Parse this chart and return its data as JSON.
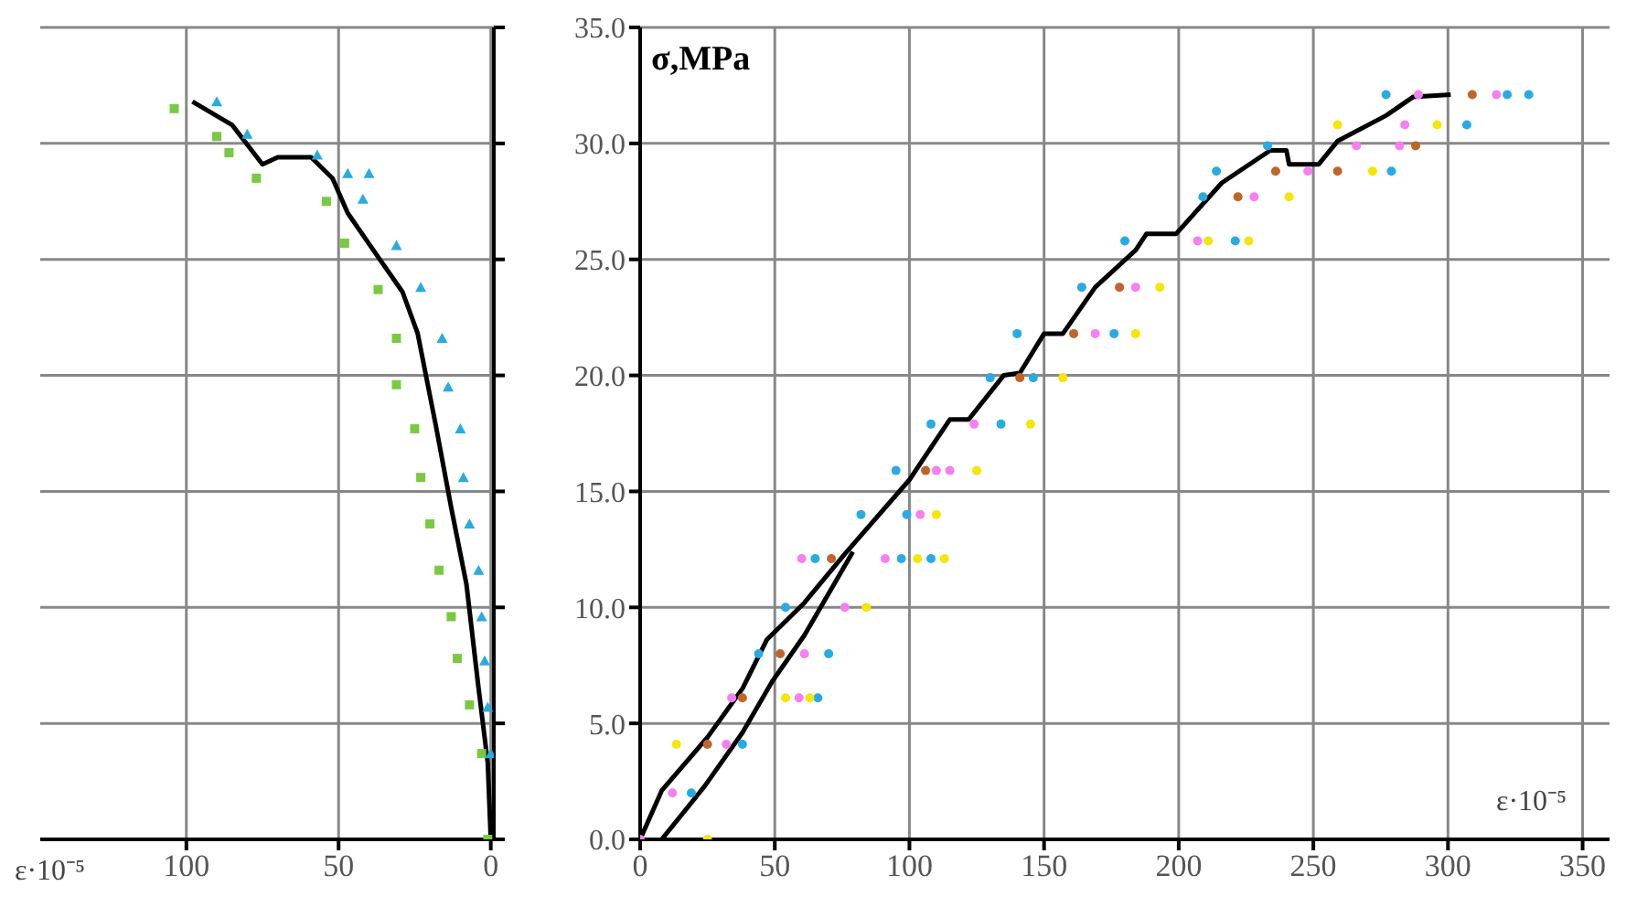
{
  "chart_data": [
    {
      "type": "scatter",
      "xlabel": "ε·10⁻⁵",
      "xlim": [
        148,
        -1
      ],
      "xticks": [
        100,
        50,
        0
      ],
      "ylim": [
        0,
        35
      ],
      "yticks": [
        0,
        5,
        10,
        15,
        20,
        25,
        30,
        35
      ],
      "tick_labels": "x",
      "grid": true,
      "series": [
        {
          "marker": "square",
          "color": "#7ac943",
          "x": [
            104,
            90,
            86,
            77,
            54,
            48,
            37,
            31,
            31,
            25,
            23,
            20,
            17,
            13,
            11,
            7,
            3,
            1
          ],
          "values": [
            31.5,
            30.3,
            29.6,
            28.5,
            27.5,
            25.7,
            23.7,
            21.6,
            19.6,
            17.7,
            15.6,
            13.6,
            11.6,
            9.6,
            7.8,
            5.8,
            3.7,
            0
          ]
        },
        {
          "marker": "triangle",
          "color": "#29abe2",
          "x": [
            90,
            80,
            57,
            47,
            40,
            42,
            31,
            23,
            16,
            14,
            10,
            9,
            7,
            4,
            3,
            2,
            1,
            0
          ],
          "values": [
            31.8,
            30.4,
            29.5,
            28.7,
            28.7,
            27.6,
            25.6,
            23.8,
            21.6,
            19.5,
            17.7,
            15.6,
            13.6,
            11.6,
            9.6,
            7.7,
            5.7,
            3.7
          ]
        },
        {
          "type": "line",
          "color": "#000000",
          "x": [
            98,
            85,
            75,
            70,
            59,
            52,
            47,
            37,
            29,
            24,
            18,
            13,
            8,
            4,
            1,
            0
          ],
          "values": [
            31.8,
            30.8,
            29.1,
            29.4,
            29.4,
            28.5,
            27.0,
            25.1,
            23.6,
            21.8,
            17.8,
            14.3,
            11.0,
            6.5,
            3.3,
            0
          ]
        }
      ]
    },
    {
      "type": "scatter",
      "ylabel": "σ,MPa",
      "xlabel": "ε·10⁻⁵",
      "xlim": [
        0,
        360
      ],
      "xticks": [
        0,
        50,
        100,
        150,
        200,
        250,
        300,
        350
      ],
      "ylim": [
        0,
        35
      ],
      "yticks": [
        {
          "value": 0,
          "label": "0.0"
        },
        {
          "value": 5,
          "label": "5.0"
        },
        {
          "value": 10,
          "label": "10.0"
        },
        {
          "value": 15,
          "label": "15.0"
        },
        {
          "value": 20,
          "label": "20.0"
        },
        {
          "value": 25,
          "label": "25.0"
        },
        {
          "value": 30,
          "label": "30.0"
        },
        {
          "value": 35,
          "label": "35.0"
        }
      ],
      "grid": true,
      "series": [
        {
          "marker": "circle",
          "color": "#29abe2",
          "x": [
            19,
            38,
            66,
            44,
            70,
            54,
            65,
            97,
            108,
            82,
            99,
            95,
            108,
            134,
            130,
            146,
            140,
            176,
            164,
            180,
            221,
            209,
            214,
            279,
            233,
            307,
            277,
            322,
            330
          ],
          "values": [
            2.0,
            4.1,
            6.1,
            8.0,
            8.0,
            10.0,
            12.1,
            12.1,
            12.1,
            14.0,
            14.0,
            15.9,
            17.9,
            17.9,
            19.9,
            19.9,
            21.8,
            21.8,
            23.8,
            25.8,
            25.8,
            27.7,
            28.8,
            28.8,
            29.9,
            30.8,
            32.1,
            32.1,
            32.1
          ]
        },
        {
          "marker": "circle",
          "color": "#f77ff0",
          "x": [
            0,
            12,
            32,
            34,
            59,
            61,
            76,
            60,
            91,
            104,
            110,
            115,
            124,
            169,
            184,
            207,
            228,
            248,
            266,
            282,
            284,
            289,
            318
          ],
          "values": [
            0,
            2.0,
            4.1,
            6.1,
            6.1,
            8.0,
            10.0,
            12.1,
            12.1,
            14.0,
            15.9,
            15.9,
            17.9,
            21.8,
            23.8,
            25.8,
            27.7,
            28.8,
            29.9,
            29.9,
            30.8,
            32.1,
            32.1
          ]
        },
        {
          "marker": "circle",
          "color": "#f5e50a",
          "x": [
            25,
            13.5,
            54,
            63,
            84,
            103,
            113,
            110,
            125,
            145,
            157,
            184,
            193,
            211,
            226,
            241,
            272,
            259,
            296
          ],
          "values": [
            0,
            4.1,
            6.1,
            6.1,
            10.0,
            12.1,
            12.1,
            14.0,
            15.9,
            17.9,
            19.9,
            21.8,
            23.8,
            25.8,
            25.8,
            27.7,
            28.8,
            30.8,
            30.8
          ]
        },
        {
          "marker": "circle",
          "color": "#c0652a",
          "x": [
            25,
            38,
            52,
            71,
            106,
            141,
            161,
            178,
            222,
            236,
            259,
            288,
            309
          ],
          "values": [
            4.1,
            6.1,
            8.0,
            12.1,
            15.9,
            19.9,
            21.8,
            23.8,
            27.7,
            28.8,
            28.8,
            29.9,
            32.1
          ]
        },
        {
          "type": "line",
          "color": "#000000",
          "x": [
            0,
            8,
            25,
            38,
            47,
            61,
            76,
            100,
            115,
            122,
            135,
            141,
            150,
            157,
            169,
            184,
            188,
            199,
            216,
            234,
            240,
            241,
            252,
            259,
            277,
            287,
            301
          ],
          "values": [
            0,
            2.1,
            4.4,
            6.5,
            8.6,
            10.2,
            12.3,
            15.5,
            18.1,
            18.1,
            20.0,
            20.1,
            21.8,
            21.8,
            23.8,
            25.4,
            26.1,
            26.1,
            28.3,
            29.7,
            29.7,
            29.1,
            29.1,
            30.1,
            31.2,
            32.0,
            32.1
          ]
        },
        {
          "type": "line",
          "color": "#000000",
          "x": [
            8,
            24,
            38,
            49,
            61,
            72,
            79
          ],
          "values": [
            0,
            2.3,
            4.6,
            6.8,
            8.8,
            11.0,
            12.4
          ]
        }
      ]
    }
  ]
}
